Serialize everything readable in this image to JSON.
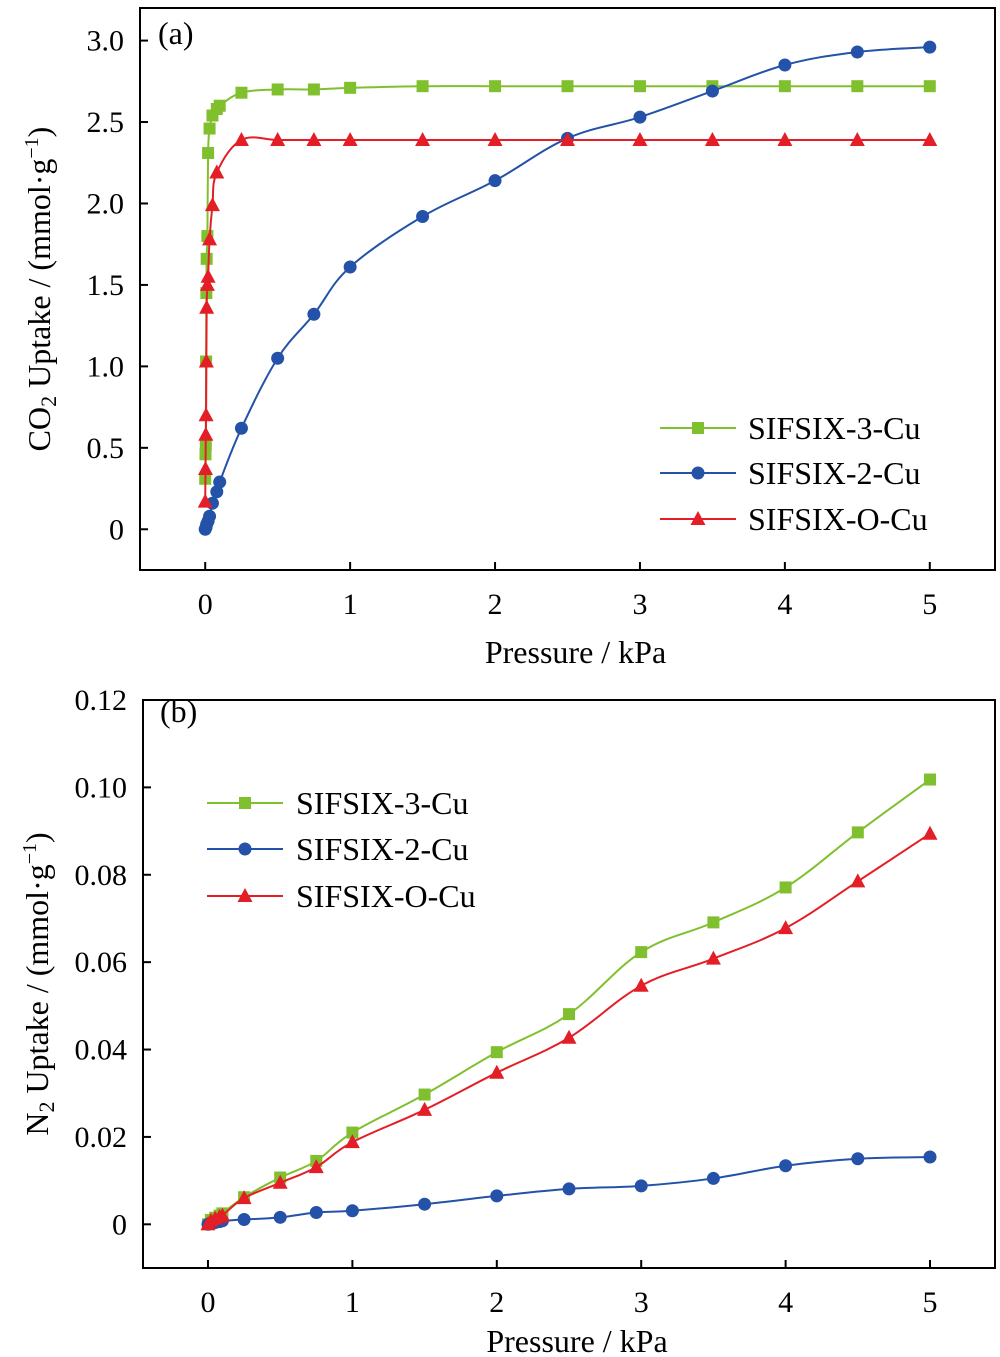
{
  "colors": {
    "green": "#80c02e",
    "blue": "#2352a8",
    "red": "#e41e26"
  },
  "chart_data": [
    {
      "type": "line",
      "panel_label": "(a)",
      "xlabel": "Pressure / kPa",
      "ylabel_pre": "CO",
      "ylabel_sub": "2",
      "ylabel_mid": " Uptake / (mmol·g",
      "ylabel_sup": "−1",
      "ylabel_post": ")",
      "xlim": [
        -0.45,
        5.45
      ],
      "ylim": [
        -0.25,
        3.2
      ],
      "xticks": [
        0,
        1,
        2,
        3,
        4,
        5
      ],
      "xtick_labels": [
        "0",
        "1",
        "2",
        "3",
        "4",
        "5"
      ],
      "yticks": [
        0,
        0.5,
        1.0,
        1.5,
        2.0,
        2.5,
        3.0
      ],
      "ytick_labels": [
        "0",
        "0.5",
        "1.0",
        "1.5",
        "2.0",
        "2.5",
        "3.0"
      ],
      "legend_position": "bottom-right",
      "series": [
        {
          "name": "SIFSIX-3-Cu",
          "color_key": "green",
          "marker": "square",
          "x": [
            0.0,
            0.002,
            0.004,
            0.006,
            0.008,
            0.01,
            0.015,
            0.02,
            0.03,
            0.05,
            0.08,
            0.1,
            0.25,
            0.5,
            0.75,
            1.0,
            1.5,
            2.0,
            2.5,
            3.0,
            3.5,
            4.0,
            4.5,
            5.0
          ],
          "y": [
            0.31,
            0.46,
            0.52,
            1.03,
            1.45,
            1.66,
            1.8,
            2.31,
            2.46,
            2.54,
            2.58,
            2.6,
            2.68,
            2.7,
            2.7,
            2.71,
            2.72,
            2.72,
            2.72,
            2.72,
            2.72,
            2.72,
            2.72,
            2.72
          ]
        },
        {
          "name": "SIFSIX-2-Cu",
          "color_key": "blue",
          "marker": "circle",
          "x": [
            0.0,
            0.005,
            0.01,
            0.02,
            0.03,
            0.05,
            0.08,
            0.1,
            0.25,
            0.5,
            0.75,
            1.0,
            1.5,
            2.0,
            2.5,
            3.0,
            3.5,
            4.0,
            4.5,
            5.0
          ],
          "y": [
            0.0,
            0.01,
            0.03,
            0.05,
            0.08,
            0.16,
            0.23,
            0.29,
            0.62,
            1.05,
            1.32,
            1.61,
            1.92,
            2.14,
            2.4,
            2.53,
            2.69,
            2.85,
            2.93,
            2.96
          ]
        },
        {
          "name": "SIFSIX-O-Cu",
          "color_key": "red",
          "marker": "triangle",
          "x": [
            0.0,
            0.002,
            0.004,
            0.006,
            0.008,
            0.01,
            0.015,
            0.02,
            0.03,
            0.05,
            0.08,
            0.25,
            0.5,
            0.75,
            1.0,
            1.5,
            2.0,
            2.5,
            3.0,
            3.5,
            4.0,
            4.5,
            5.0
          ],
          "y": [
            0.17,
            0.37,
            0.58,
            0.7,
            1.03,
            1.36,
            1.5,
            1.55,
            1.78,
            1.99,
            2.19,
            2.39,
            2.39,
            2.39,
            2.39,
            2.39,
            2.39,
            2.39,
            2.39,
            2.39,
            2.39,
            2.39,
            2.39
          ]
        }
      ]
    },
    {
      "type": "line",
      "panel_label": "(b)",
      "xlabel": "Pressure / kPa",
      "ylabel_pre": "N",
      "ylabel_sub": "2",
      "ylabel_mid": " Uptake / (mmol·g",
      "ylabel_sup": "−1",
      "ylabel_post": ")",
      "xlim": [
        -0.45,
        5.45
      ],
      "ylim": [
        -0.01,
        0.12
      ],
      "xticks": [
        0,
        1,
        2,
        3,
        4,
        5
      ],
      "xtick_labels": [
        "0",
        "1",
        "2",
        "3",
        "4",
        "5"
      ],
      "yticks": [
        0,
        0.02,
        0.04,
        0.06,
        0.08,
        0.1,
        0.12
      ],
      "ytick_labels": [
        "0",
        "0.02",
        "0.04",
        "0.06",
        "0.08",
        "0.10",
        "0.12"
      ],
      "legend_position": "top-left",
      "series": [
        {
          "name": "SIFSIX-3-Cu",
          "color_key": "green",
          "marker": "square",
          "x": [
            0.0,
            0.02,
            0.05,
            0.08,
            0.1,
            0.25,
            0.5,
            0.75,
            1.0,
            1.5,
            2.0,
            2.5,
            3.0,
            3.5,
            4.0,
            4.5,
            5.0
          ],
          "y": [
            0.0,
            0.001,
            0.0015,
            0.002,
            0.0025,
            0.0062,
            0.0107,
            0.0145,
            0.021,
            0.0297,
            0.0394,
            0.0481,
            0.0623,
            0.0691,
            0.0771,
            0.0897,
            0.1018
          ]
        },
        {
          "name": "SIFSIX-2-Cu",
          "color_key": "blue",
          "marker": "circle",
          "x": [
            0.0,
            0.02,
            0.05,
            0.08,
            0.1,
            0.25,
            0.5,
            0.75,
            1.0,
            1.5,
            2.0,
            2.5,
            3.0,
            3.5,
            4.0,
            4.5,
            5.0
          ],
          "y": [
            0.0,
            0.0002,
            0.0004,
            0.0006,
            0.0008,
            0.0011,
            0.0016,
            0.0027,
            0.0031,
            0.0046,
            0.0065,
            0.0081,
            0.0088,
            0.0105,
            0.0134,
            0.015,
            0.0154
          ]
        },
        {
          "name": "SIFSIX-O-Cu",
          "color_key": "red",
          "marker": "triangle",
          "x": [
            0.0,
            0.02,
            0.05,
            0.08,
            0.1,
            0.25,
            0.5,
            0.75,
            1.0,
            1.5,
            2.0,
            2.5,
            3.0,
            3.5,
            4.0,
            4.5,
            5.0
          ],
          "y": [
            0.0,
            0.0008,
            0.0013,
            0.0017,
            0.002,
            0.006,
            0.0095,
            0.0131,
            0.0188,
            0.0262,
            0.0347,
            0.0427,
            0.0546,
            0.0608,
            0.0678,
            0.0785,
            0.0894
          ]
        }
      ]
    }
  ]
}
